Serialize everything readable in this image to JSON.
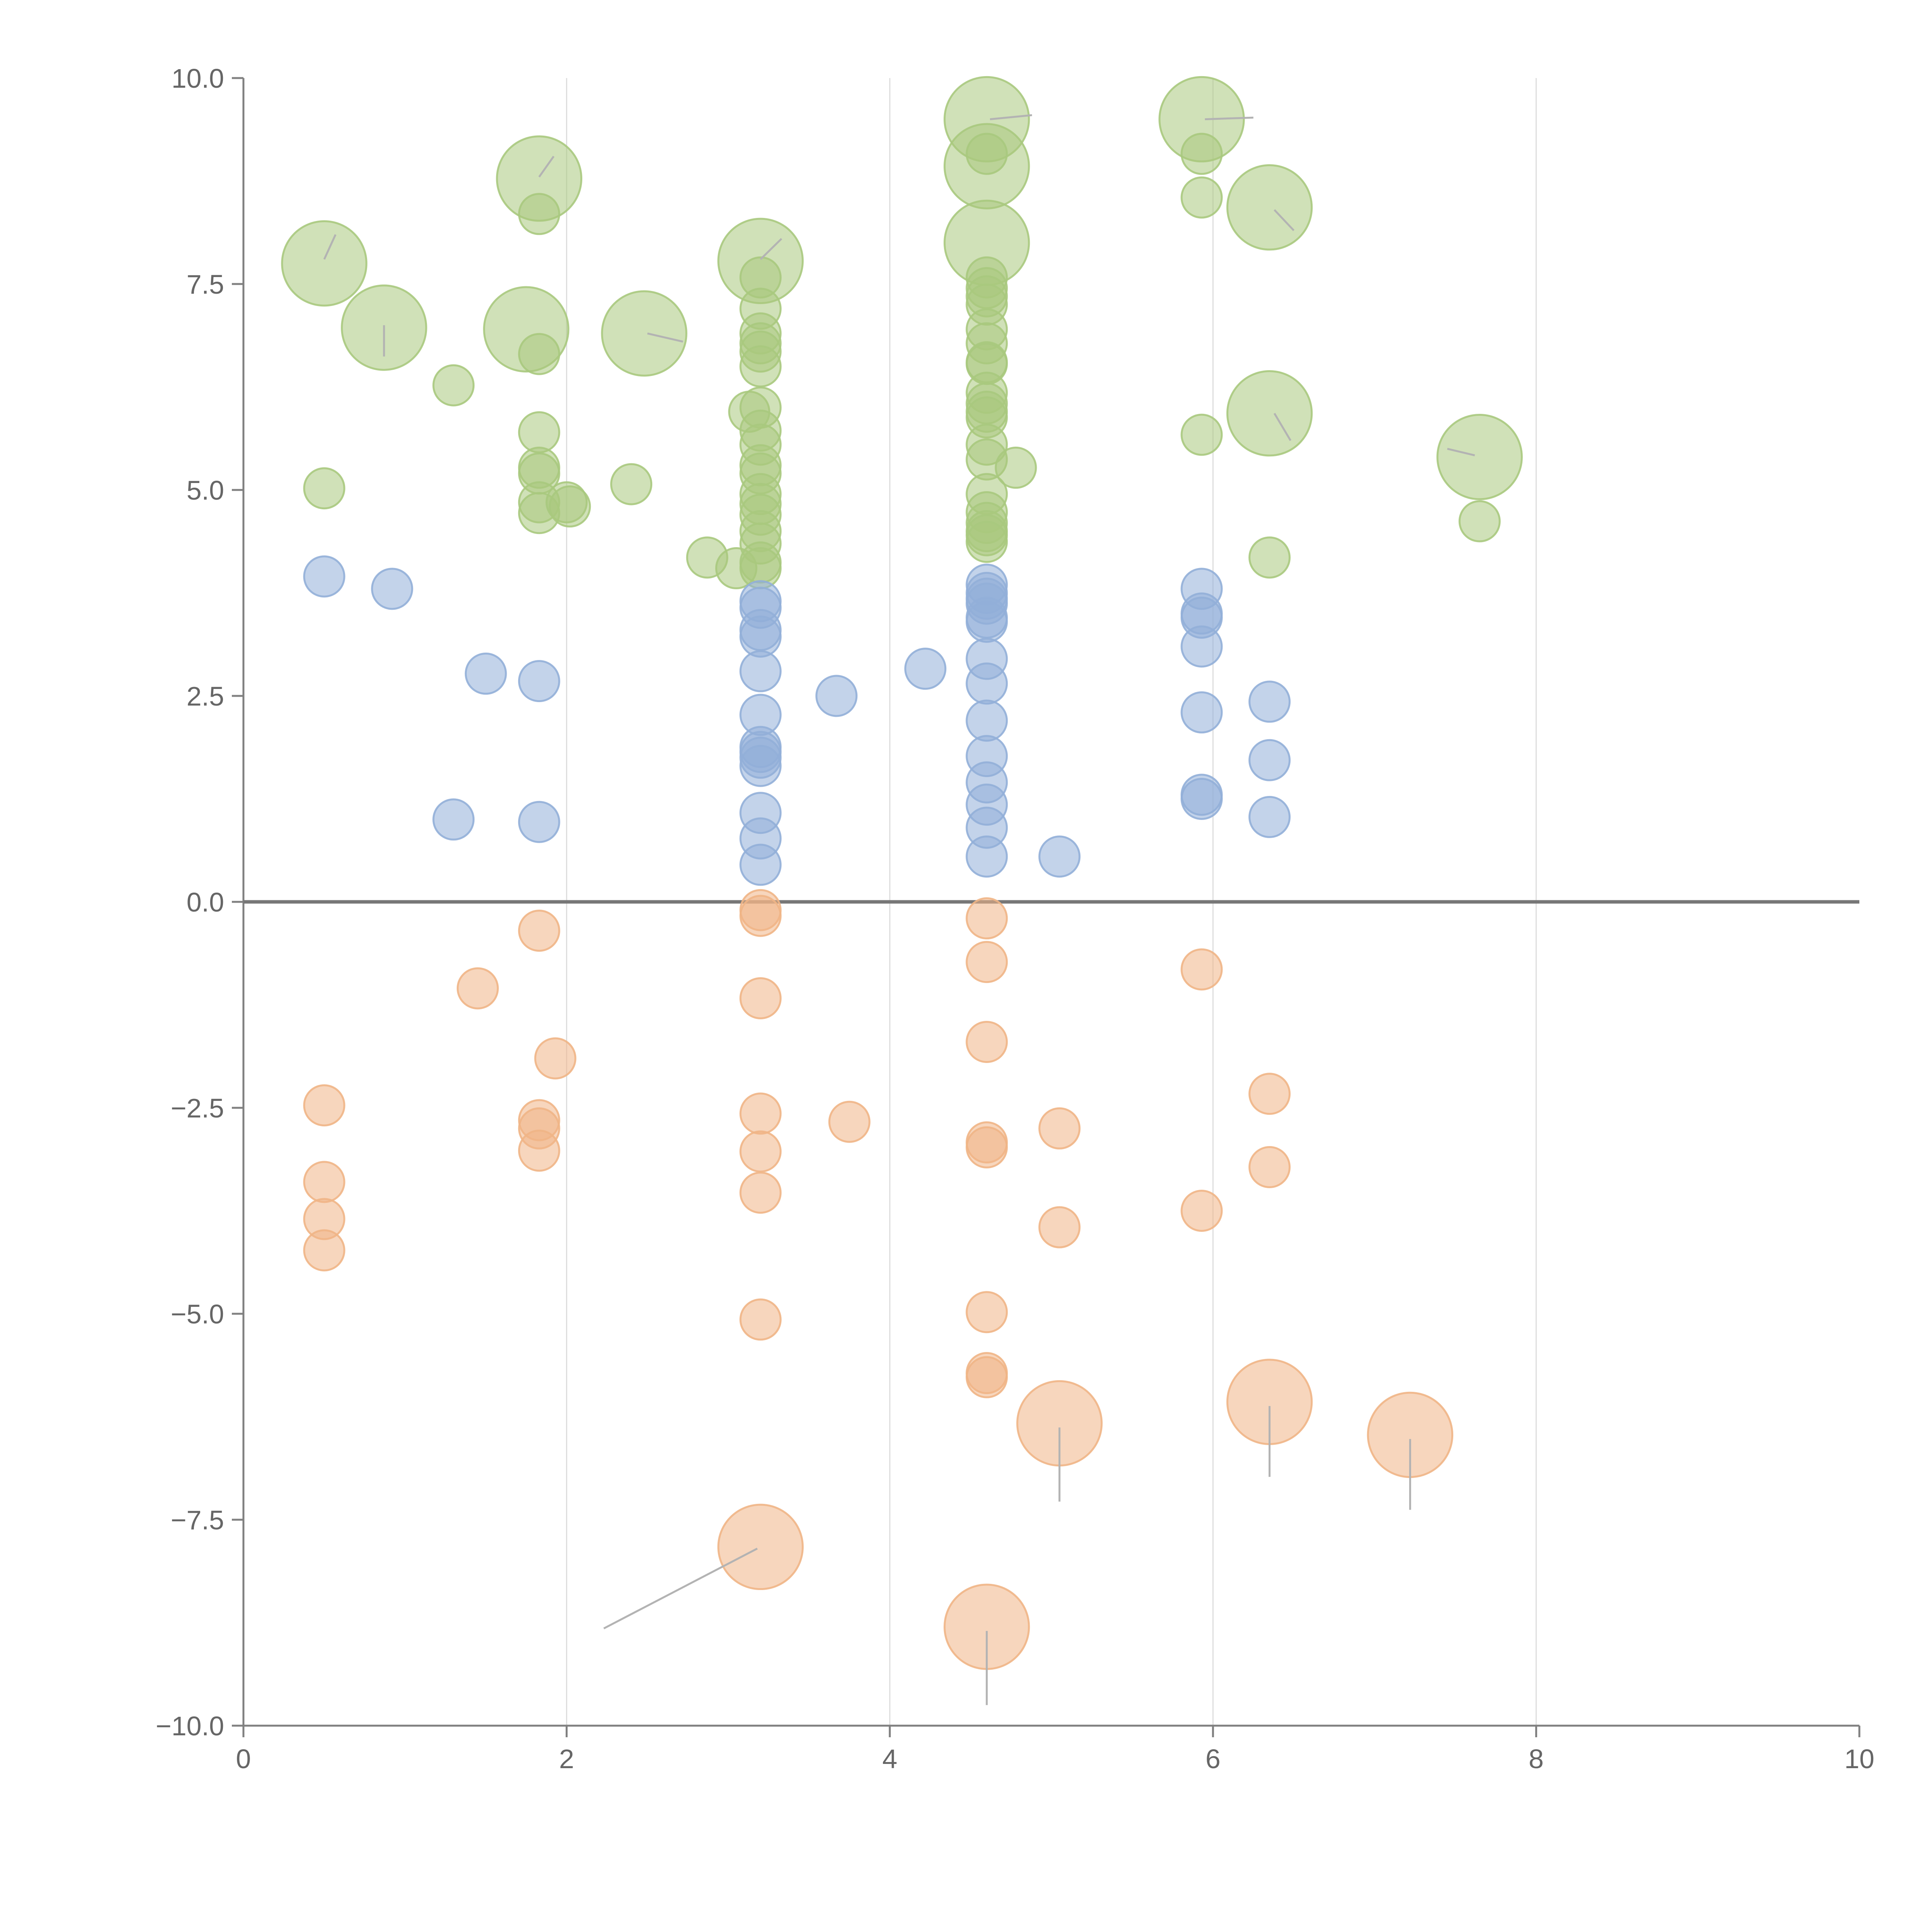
{
  "chart_data": {
    "type": "scatter",
    "title": "",
    "xlabel": "",
    "ylabel": "",
    "xlim": [
      0,
      10
    ],
    "ylim": [
      -10,
      10
    ],
    "x_ticks": [
      0,
      2,
      4,
      6,
      8,
      10
    ],
    "x_tick_labels": [
      "0",
      "2",
      "4",
      "6",
      "8",
      "10"
    ],
    "y_ticks": [
      10,
      7.5,
      5,
      2.5,
      0,
      -2.5,
      -5,
      -7.5,
      -10
    ],
    "y_tick_labels": [
      "10.0",
      "7.5",
      "5.0",
      "2.5",
      "0.0",
      "−2.5",
      "−5.0",
      "−7.5",
      "−10.0"
    ],
    "vertical_grid": [
      2,
      4,
      6,
      8
    ],
    "zero_line": 0,
    "size_scale": {
      "small": 1,
      "large": 2.1
    },
    "series": [
      {
        "name": "green",
        "color": "#a9c97e",
        "points": [
          [
            0.5,
            7.75,
            2
          ],
          [
            0.87,
            6.97,
            2
          ],
          [
            1.75,
            6.95,
            2
          ],
          [
            1.83,
            8.78,
            2
          ],
          [
            2.48,
            6.9,
            2
          ],
          [
            3.2,
            7.78,
            2
          ],
          [
            4.6,
            9.5,
            2
          ],
          [
            4.6,
            8.93,
            2
          ],
          [
            4.6,
            8.0,
            2
          ],
          [
            5.93,
            9.5,
            2
          ],
          [
            6.35,
            8.43,
            2
          ],
          [
            6.35,
            5.93,
            2
          ],
          [
            7.65,
            5.4,
            2
          ],
          [
            0.5,
            5.02,
            1
          ],
          [
            1.3,
            6.27,
            1
          ],
          [
            1.83,
            8.35,
            1
          ],
          [
            1.83,
            6.65,
            1
          ],
          [
            1.83,
            5.7,
            1
          ],
          [
            1.83,
            5.27,
            1
          ],
          [
            1.83,
            5.2,
            1
          ],
          [
            1.83,
            4.85,
            1
          ],
          [
            1.83,
            4.72,
            1
          ],
          [
            2.0,
            4.85,
            1
          ],
          [
            2.02,
            4.8,
            1
          ],
          [
            2.4,
            5.07,
            1
          ],
          [
            2.87,
            4.18,
            1
          ],
          [
            3.05,
            4.05,
            1
          ],
          [
            3.13,
            5.95,
            1
          ],
          [
            3.2,
            7.58,
            1
          ],
          [
            3.2,
            7.2,
            1
          ],
          [
            3.2,
            6.9,
            1
          ],
          [
            3.2,
            6.78,
            1
          ],
          [
            3.2,
            6.68,
            1
          ],
          [
            3.2,
            6.5,
            1
          ],
          [
            3.2,
            6.0,
            1
          ],
          [
            3.2,
            5.72,
            1
          ],
          [
            3.2,
            5.55,
            1
          ],
          [
            3.2,
            5.3,
            1
          ],
          [
            3.2,
            5.2,
            1
          ],
          [
            3.2,
            4.95,
            1
          ],
          [
            3.2,
            4.83,
            1
          ],
          [
            3.2,
            4.7,
            1
          ],
          [
            3.2,
            4.5,
            1
          ],
          [
            3.2,
            4.35,
            1
          ],
          [
            3.2,
            4.12,
            1
          ],
          [
            3.2,
            4.05,
            1
          ],
          [
            4.6,
            9.08,
            1
          ],
          [
            4.6,
            7.58,
            1
          ],
          [
            4.6,
            7.45,
            1
          ],
          [
            4.6,
            7.35,
            1
          ],
          [
            4.6,
            7.25,
            1
          ],
          [
            4.6,
            6.95,
            1
          ],
          [
            4.6,
            6.78,
            1
          ],
          [
            4.6,
            6.55,
            1
          ],
          [
            4.6,
            6.53,
            1
          ],
          [
            4.6,
            6.18,
            1
          ],
          [
            4.6,
            6.05,
            1
          ],
          [
            4.6,
            5.95,
            1
          ],
          [
            4.6,
            5.88,
            1
          ],
          [
            4.6,
            5.55,
            1
          ],
          [
            4.6,
            5.37,
            1
          ],
          [
            4.6,
            4.95,
            1
          ],
          [
            4.6,
            4.73,
            1
          ],
          [
            4.6,
            4.6,
            1
          ],
          [
            4.6,
            4.5,
            1
          ],
          [
            4.6,
            4.45,
            1
          ],
          [
            4.6,
            4.37,
            1
          ],
          [
            4.78,
            5.27,
            1
          ],
          [
            5.93,
            9.08,
            1
          ],
          [
            5.93,
            8.55,
            1
          ],
          [
            5.93,
            5.67,
            1
          ],
          [
            6.35,
            4.18,
            1
          ],
          [
            7.65,
            4.62,
            1
          ]
        ]
      },
      {
        "name": "blue",
        "color": "#92afd8",
        "points": [
          [
            0.5,
            3.95,
            1
          ],
          [
            0.92,
            3.8,
            1
          ],
          [
            1.3,
            1.0,
            1
          ],
          [
            1.5,
            2.77,
            1
          ],
          [
            1.83,
            2.68,
            1
          ],
          [
            1.83,
            0.97,
            1
          ],
          [
            3.2,
            3.65,
            1
          ],
          [
            3.2,
            3.57,
            1
          ],
          [
            3.2,
            3.3,
            1
          ],
          [
            3.2,
            3.22,
            1
          ],
          [
            3.2,
            2.8,
            1
          ],
          [
            3.2,
            2.27,
            1
          ],
          [
            3.2,
            1.88,
            1
          ],
          [
            3.2,
            1.82,
            1
          ],
          [
            3.2,
            1.75,
            1
          ],
          [
            3.2,
            1.65,
            1
          ],
          [
            3.2,
            1.08,
            1
          ],
          [
            3.2,
            0.77,
            1
          ],
          [
            3.2,
            0.45,
            1
          ],
          [
            3.67,
            2.5,
            1
          ],
          [
            4.22,
            2.83,
            1
          ],
          [
            4.6,
            3.85,
            1
          ],
          [
            4.6,
            3.75,
            1
          ],
          [
            4.6,
            3.68,
            1
          ],
          [
            4.6,
            3.62,
            1
          ],
          [
            4.6,
            3.45,
            1
          ],
          [
            4.6,
            3.4,
            1
          ],
          [
            4.6,
            2.95,
            1
          ],
          [
            4.6,
            2.65,
            1
          ],
          [
            4.6,
            2.2,
            1
          ],
          [
            4.6,
            1.77,
            1
          ],
          [
            4.6,
            1.45,
            1
          ],
          [
            4.6,
            1.18,
            1
          ],
          [
            4.6,
            0.9,
            1
          ],
          [
            4.6,
            0.55,
            1
          ],
          [
            5.05,
            0.55,
            1
          ],
          [
            5.93,
            3.8,
            1
          ],
          [
            5.93,
            3.5,
            1
          ],
          [
            5.93,
            3.45,
            1
          ],
          [
            5.93,
            3.1,
            1
          ],
          [
            5.93,
            2.3,
            1
          ],
          [
            5.93,
            1.3,
            1
          ],
          [
            5.93,
            1.25,
            1
          ],
          [
            6.35,
            2.43,
            1
          ],
          [
            6.35,
            1.72,
            1
          ],
          [
            6.35,
            1.03,
            1
          ]
        ]
      },
      {
        "name": "orange",
        "color": "#f0b586",
        "points": [
          [
            0.5,
            -2.47,
            1
          ],
          [
            0.5,
            -3.4,
            1
          ],
          [
            0.5,
            -3.85,
            1
          ],
          [
            0.5,
            -4.23,
            1
          ],
          [
            1.45,
            -1.05,
            1
          ],
          [
            1.83,
            -0.35,
            1
          ],
          [
            1.83,
            -2.65,
            1
          ],
          [
            1.83,
            -2.75,
            1
          ],
          [
            1.83,
            -3.02,
            1
          ],
          [
            1.93,
            -1.9,
            1
          ],
          [
            3.2,
            -0.1,
            1
          ],
          [
            3.2,
            -0.17,
            1
          ],
          [
            3.2,
            -1.17,
            1
          ],
          [
            3.2,
            -2.57,
            1
          ],
          [
            3.2,
            -3.03,
            1
          ],
          [
            3.2,
            -3.53,
            1
          ],
          [
            3.2,
            -5.07,
            1
          ],
          [
            3.75,
            -2.67,
            1
          ],
          [
            4.6,
            -0.2,
            1
          ],
          [
            4.6,
            -0.73,
            1
          ],
          [
            4.6,
            -1.7,
            1
          ],
          [
            4.6,
            -2.92,
            1
          ],
          [
            4.6,
            -2.98,
            1
          ],
          [
            4.6,
            -4.98,
            1
          ],
          [
            4.6,
            -5.72,
            1
          ],
          [
            4.6,
            -5.77,
            1
          ],
          [
            5.05,
            -2.75,
            1
          ],
          [
            5.05,
            -3.95,
            1
          ],
          [
            5.93,
            -0.82,
            1
          ],
          [
            5.93,
            -3.75,
            1
          ],
          [
            6.35,
            -2.33,
            1
          ],
          [
            6.35,
            -3.22,
            1
          ],
          [
            3.2,
            -7.83,
            2
          ],
          [
            4.6,
            -8.8,
            2
          ],
          [
            5.05,
            -6.33,
            2
          ],
          [
            6.35,
            -6.07,
            2
          ],
          [
            7.22,
            -6.47,
            2
          ]
        ]
      }
    ],
    "leader_lines": [
      {
        "from": [
          3.18,
          -7.85
        ],
        "to": [
          2.23,
          -8.82
        ],
        "color": "#b3b3b3"
      },
      {
        "from": [
          4.6,
          -8.85
        ],
        "to": [
          4.6,
          -9.75
        ],
        "color": "#b3b3b3"
      },
      {
        "from": [
          5.05,
          -6.38
        ],
        "to": [
          5.05,
          -7.28
        ],
        "color": "#b3b3b3"
      },
      {
        "from": [
          6.35,
          -6.12
        ],
        "to": [
          6.35,
          -6.98
        ],
        "color": "#b3b3b3"
      },
      {
        "from": [
          7.22,
          -6.52
        ],
        "to": [
          7.22,
          -7.38
        ],
        "color": "#b3b3b3"
      },
      {
        "from": [
          0.5,
          7.8
        ],
        "to": [
          0.57,
          8.1
        ],
        "color": "#ffffff"
      },
      {
        "from": [
          0.87,
          7.0
        ],
        "to": [
          0.87,
          6.62
        ],
        "color": "#ffffff"
      },
      {
        "from": [
          1.83,
          8.8
        ],
        "to": [
          1.92,
          9.05
        ],
        "color": "#ffffff"
      },
      {
        "from": [
          2.5,
          6.9
        ],
        "to": [
          2.72,
          6.8
        ],
        "color": "#ffffff"
      },
      {
        "from": [
          3.2,
          7.8
        ],
        "to": [
          3.33,
          8.05
        ],
        "color": "#ffffff"
      },
      {
        "from": [
          4.62,
          9.5
        ],
        "to": [
          4.88,
          9.55
        ],
        "color": "#ffffff"
      },
      {
        "from": [
          5.95,
          9.5
        ],
        "to": [
          6.25,
          9.52
        ],
        "color": "#ffffff"
      },
      {
        "from": [
          6.38,
          8.4
        ],
        "to": [
          6.5,
          8.15
        ],
        "color": "#ffffff"
      },
      {
        "from": [
          6.38,
          5.93
        ],
        "to": [
          6.48,
          5.6
        ],
        "color": "#ffffff"
      },
      {
        "from": [
          7.62,
          5.42
        ],
        "to": [
          7.45,
          5.5
        ],
        "color": "#ffffff"
      }
    ]
  }
}
